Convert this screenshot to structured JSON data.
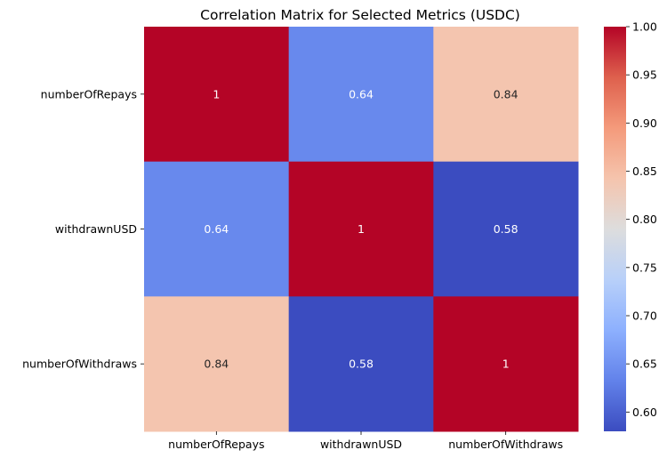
{
  "chart_data": {
    "type": "heatmap",
    "title": "Correlation Matrix for Selected Metrics (USDC)",
    "xlabel": "",
    "ylabel": "",
    "row_labels": [
      "numberOfRepays",
      "withdrawnUSD",
      "numberOfWithdraws"
    ],
    "col_labels": [
      "numberOfRepays",
      "withdrawnUSD",
      "numberOfWithdraws"
    ],
    "values": [
      [
        1,
        0.64,
        0.84
      ],
      [
        0.64,
        1,
        0.58
      ],
      [
        0.84,
        0.58,
        1
      ]
    ],
    "cell_labels": [
      [
        "1",
        "0.64",
        "0.84"
      ],
      [
        "0.64",
        "1",
        "0.58"
      ],
      [
        "0.84",
        "0.58",
        "1"
      ]
    ],
    "colormap": "coolwarm",
    "colorbar": {
      "range": [
        0.58,
        1.0
      ],
      "ticks": [
        0.6,
        0.65,
        0.7,
        0.75,
        0.8,
        0.85,
        0.9,
        0.95,
        1.0
      ],
      "tick_labels": [
        "0.60",
        "0.65",
        "0.70",
        "0.75",
        "0.80",
        "0.85",
        "0.90",
        "0.95",
        "1.00"
      ]
    },
    "colors": {
      "high": "#b40426",
      "mid": "#dddddd",
      "low": "#3b4cc0"
    },
    "grid": false
  }
}
